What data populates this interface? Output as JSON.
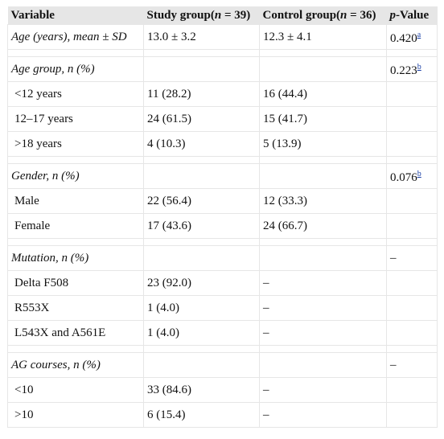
{
  "header": {
    "variable": "Variable",
    "study_prefix": "Study group(",
    "study_n": "n",
    "study_suffix": " = 39)",
    "control_prefix": "Control group(",
    "control_n": "n",
    "control_suffix": " = 36)",
    "pvalue_italic": "p",
    "pvalue_rest": "-Value"
  },
  "rows": {
    "age_mean": {
      "label": "Age (years), mean ± SD",
      "study": "13.0 ± 3.2",
      "control": "12.3 ± 4.1",
      "p": "0.420",
      "note": "a"
    },
    "age_group": {
      "label": "Age group, n (%)",
      "p": "0.223",
      "note": "b"
    },
    "age_lt12": {
      "label": "<12 years",
      "study": "11 (28.2)",
      "control": "16 (44.4)"
    },
    "age_12_17": {
      "label": "12–17 years",
      "study": "24 (61.5)",
      "control": "15 (41.7)"
    },
    "age_gt18": {
      "label": ">18 years",
      "study": "4 (10.3)",
      "control": "5 (13.9)"
    },
    "gender": {
      "label": "Gender, n (%)",
      "p": "0.076",
      "note": "b"
    },
    "male": {
      "label": "Male",
      "study": "22 (56.4)",
      "control": "12 (33.3)"
    },
    "female": {
      "label": "Female",
      "study": "17 (43.6)",
      "control": "24 (66.7)"
    },
    "mutation": {
      "label": "Mutation, n (%)",
      "p": "–"
    },
    "delta_f508": {
      "label": "Delta F508",
      "study": "23 (92.0)",
      "control": "–"
    },
    "r553x": {
      "label": "R553X",
      "study": "1 (4.0)",
      "control": "–"
    },
    "l543x": {
      "label": "L543X and A561E",
      "study": "1 (4.0)",
      "control": "–"
    },
    "ag_courses": {
      "label": "AG courses, n (%)",
      "p": "–"
    },
    "ag_lt10": {
      "label": "<10",
      "study": "33 (84.6)",
      "control": "–"
    },
    "ag_gt10": {
      "label": ">10",
      "study": "6 (15.4)",
      "control": "–"
    }
  }
}
